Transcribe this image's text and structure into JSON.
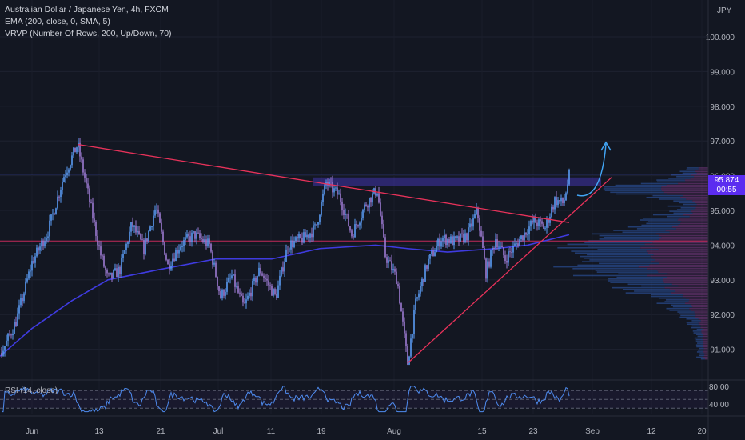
{
  "legend": {
    "symbol": "Australian Dollar / Japanese Yen, 4h, FXCM",
    "ema": "EMA (200, close, 0, SMA, 5)",
    "vrvp": "VRVP (Number Of Rows, 200, Up/Down, 70)"
  },
  "rsi_legend": "RSI (14, close)",
  "currency": "JPY",
  "price_axis": [
    "100.000",
    "99.000",
    "98.000",
    "97.000",
    "96.000",
    "95.000",
    "94.000",
    "93.000",
    "92.000",
    "91.000"
  ],
  "price_values": [
    100,
    99,
    98,
    97,
    96,
    95,
    94,
    93,
    92,
    91
  ],
  "rsi_axis": [
    "80.00",
    "40.00"
  ],
  "time_axis": [
    "Jun",
    "13",
    "21",
    "Jul",
    "11",
    "19",
    "Aug",
    "15",
    "23",
    "Sep",
    "12",
    "20"
  ],
  "last_price": {
    "price": "95.874",
    "countdown": "00:55"
  },
  "colors": {
    "background": "#131722",
    "candle_up": "#5b9cf6",
    "candle_down": "#9e7bd4",
    "ema": "#3f3be0",
    "trendline": "#e8325a",
    "arrow": "#42a5f5",
    "last_price": "#5b2cf0",
    "rsi": "#4f8cf0"
  },
  "icons": [
    "curved-arrow-up-icon"
  ]
}
